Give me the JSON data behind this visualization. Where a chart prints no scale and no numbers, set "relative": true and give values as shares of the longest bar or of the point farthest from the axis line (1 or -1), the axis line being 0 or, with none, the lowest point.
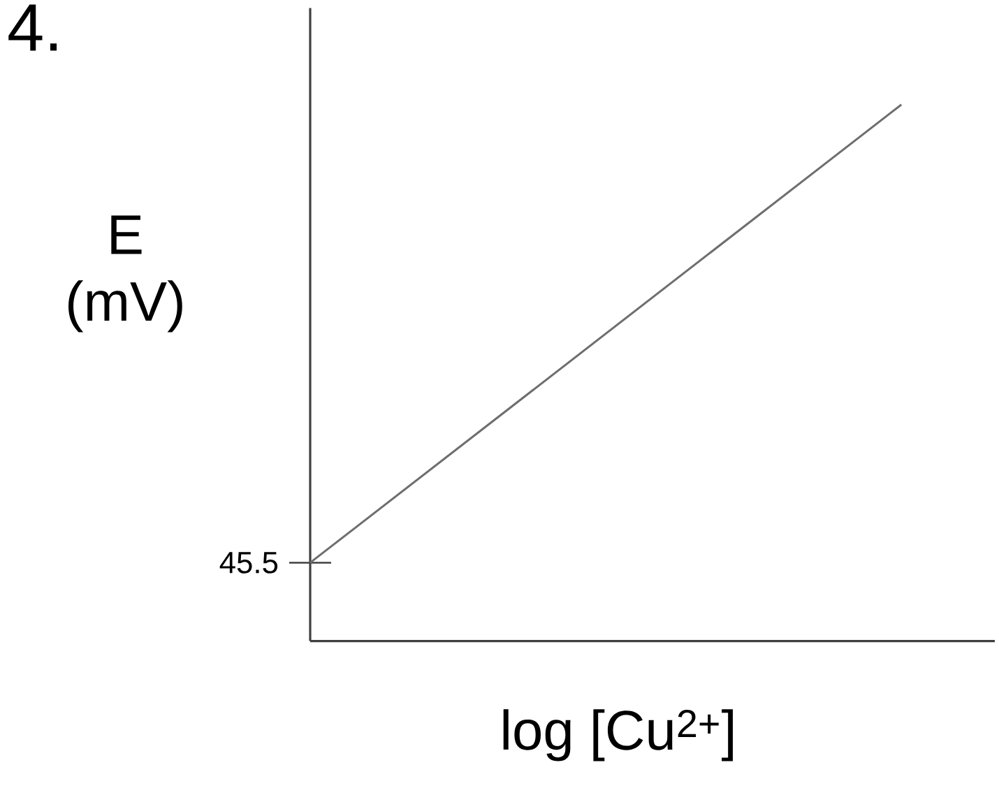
{
  "chart_data": {
    "type": "line",
    "title": "4.",
    "xlabel": "log [Cu$^{2+}$]",
    "ylabel": "E (mV)",
    "relative": true,
    "categories": [
      null,
      null
    ],
    "series": [
      {
        "color": "#6e6e6e",
        "values": [
          0.146,
          1
        ]
      }
    ],
    "annotations": [
      "45.5"
    ]
  }
}
